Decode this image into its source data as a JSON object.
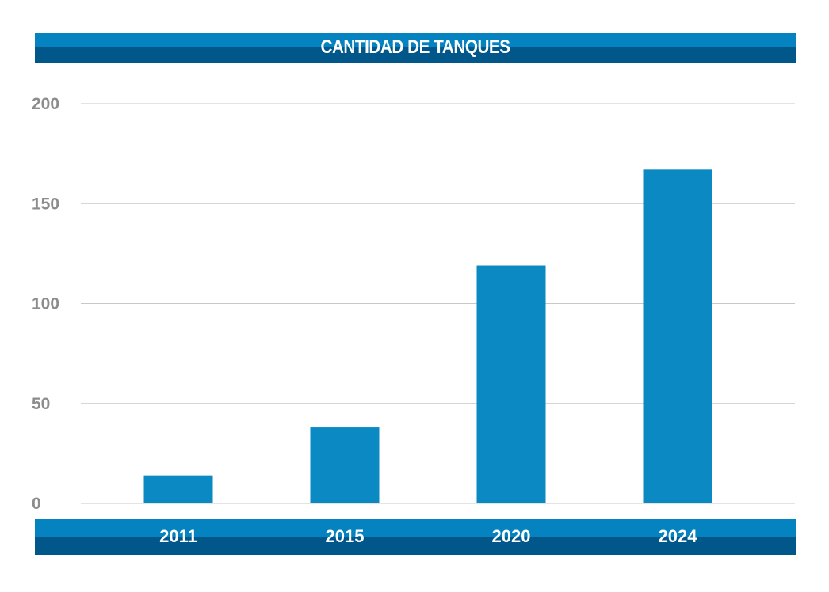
{
  "chart_data": {
    "type": "bar",
    "title": "CANTIDAD DE TANQUES",
    "categories": [
      "2011",
      "2015",
      "2020",
      "2024"
    ],
    "values": [
      14,
      38,
      119,
      167
    ],
    "ylim": [
      0,
      200
    ],
    "yticks": [
      0,
      50,
      100,
      150,
      200
    ],
    "xlabel": "",
    "ylabel": "",
    "grid": true,
    "colors": {
      "bar": "#0a89c3",
      "gridline": "#c8c8c8",
      "band_top": "#0583c1",
      "band_bottom": "#02578a",
      "tick_text": "#8c8c8c"
    }
  }
}
